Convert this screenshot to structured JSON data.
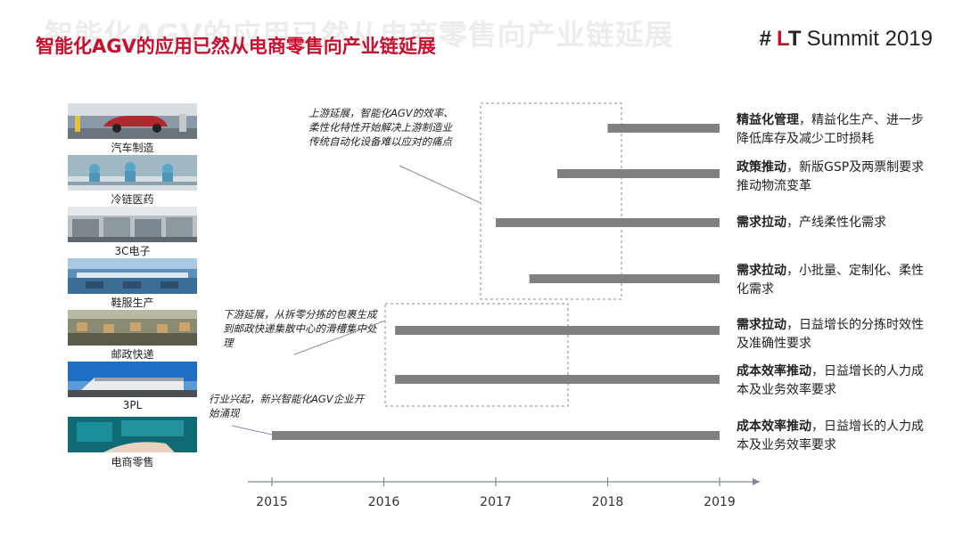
{
  "header": {
    "title": "智能化AGV的应用已然从电商零售向产业链延展",
    "brand_hash": "#",
    "brand_lt_l": "L",
    "brand_lt_t": "T",
    "brand_rest": "Summit 2019"
  },
  "industries": [
    {
      "label": "汽车制造",
      "icon": "car-factory-photo"
    },
    {
      "label": "冷链医药",
      "icon": "pharma-lab-photo"
    },
    {
      "label": "3C电子",
      "icon": "electronics-line-photo"
    },
    {
      "label": "鞋服生产",
      "icon": "garment-factory-photo"
    },
    {
      "label": "邮政快递",
      "icon": "parcel-sorting-photo"
    },
    {
      "label": "3PL",
      "icon": "warehouse-building-photo"
    },
    {
      "label": "电商零售",
      "icon": "ecommerce-hands-photo"
    }
  ],
  "notes": {
    "upstream": "上游延展，智能化AGV的效率、柔性化特性开始解决上游制造业传统自动化设备难以应对的痛点",
    "downstream": "下游延展，从拆零分拣的包裹生成到邮政快递集散中心的滑槽集中处理",
    "emergence": "行业兴起，新兴智能化AGV企业开始涌现"
  },
  "reasons": [
    {
      "bold": "精益化管理",
      "text": "，精益化生产、进一步降低库存及减少工时损耗"
    },
    {
      "bold": "政策推动",
      "text": "，新版GSP及两票制要求推动物流变革"
    },
    {
      "bold": "需求拉动",
      "text": "，产线柔性化需求"
    },
    {
      "bold": "需求拉动",
      "text": "，小批量、定制化、柔性化需求"
    },
    {
      "bold": "需求拉动",
      "text": "，日益增长的分拣时效性及准确性要求"
    },
    {
      "bold": "成本效率推动",
      "text": "，日益增长的人力成本及业务效率要求"
    },
    {
      "bold": "成本效率推动",
      "text": "，日益增长的人力成本及业务效率要求"
    }
  ],
  "chart_data": {
    "type": "bar",
    "orientation": "horizontal",
    "categories": [
      "汽车制造",
      "冷链医药",
      "3C电子",
      "鞋服生产",
      "邮政快递",
      "3PL",
      "电商零售"
    ],
    "series": [
      {
        "start": [
          2018.0,
          2017.55,
          2017.0,
          2017.3,
          2016.1,
          2016.1,
          2015.0
        ],
        "end": [
          2019,
          2019,
          2019,
          2019,
          2019,
          2019,
          2019
        ]
      }
    ],
    "x_ticks": [
      2015,
      2016,
      2017,
      2018,
      2019
    ],
    "xlim": [
      2014.8,
      2019.35
    ],
    "bar_color": "#808080",
    "grid": false
  },
  "colors": {
    "accent": "#c8102e",
    "bar": "#808080",
    "axis": "#7a8a99",
    "dashed_box": "#888888"
  }
}
